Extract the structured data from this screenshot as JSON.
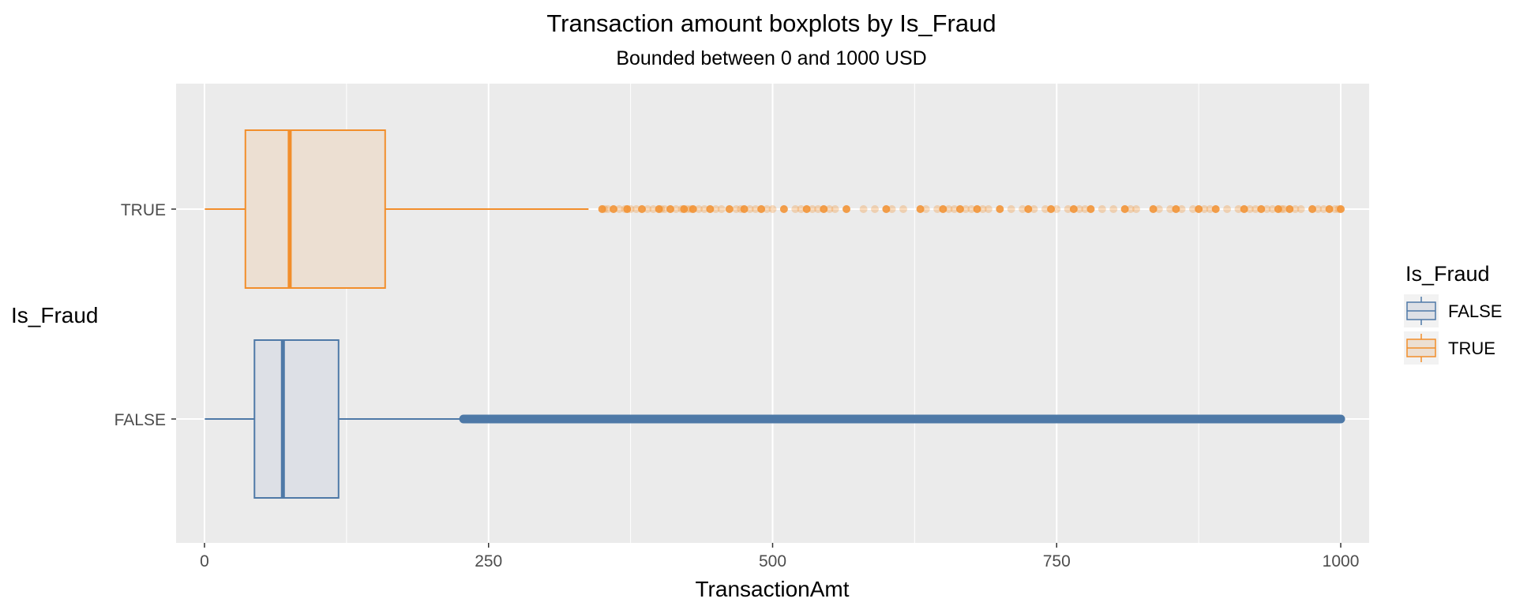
{
  "chart_data": {
    "type": "boxplot",
    "orientation": "horizontal",
    "title": "Transaction amount boxplots by Is_Fraud",
    "subtitle": "Bounded between 0 and 1000 USD",
    "xlabel": "TransactionAmt",
    "ylabel": "Is_Fraud",
    "xlim": [
      -25,
      1025
    ],
    "x_ticks": [
      0,
      250,
      500,
      750,
      1000
    ],
    "x_tick_labels": [
      "0",
      "250",
      "500",
      "750",
      "1000"
    ],
    "categories": [
      "FALSE",
      "TRUE"
    ],
    "grid": true,
    "legend": {
      "title": "Is_Fraud",
      "placement": "right",
      "entries": [
        "FALSE",
        "TRUE"
      ]
    },
    "series": [
      {
        "name": "FALSE",
        "color": "#4e79a7",
        "fill": "#dde0e6",
        "whisker_low": 0.3,
        "q1": 44,
        "median": 69,
        "q3": 118,
        "whisker_high": 228,
        "outlier_range": [
          228,
          1000
        ],
        "outlier_style": "dense"
      },
      {
        "name": "TRUE",
        "color": "#f28e2b",
        "fill": "#ecdfd2",
        "whisker_low": 0.3,
        "q1": 36,
        "median": 75,
        "q3": 159,
        "whisker_high": 338,
        "outliers": [
          350,
          352,
          355,
          360,
          365,
          370,
          372,
          375,
          380,
          385,
          390,
          395,
          400,
          402,
          405,
          410,
          415,
          420,
          422,
          425,
          428,
          430,
          435,
          440,
          445,
          450,
          455,
          462,
          468,
          472,
          475,
          480,
          485,
          490,
          495,
          500,
          510,
          520,
          525,
          530,
          535,
          540,
          545,
          550,
          555,
          565,
          580,
          590,
          600,
          605,
          615,
          630,
          635,
          645,
          650,
          655,
          660,
          665,
          670,
          675,
          680,
          685,
          690,
          700,
          710,
          720,
          725,
          730,
          740,
          745,
          750,
          760,
          765,
          770,
          775,
          780,
          790,
          800,
          810,
          815,
          820,
          835,
          840,
          850,
          855,
          860,
          870,
          875,
          880,
          885,
          890,
          900,
          910,
          915,
          920,
          925,
          930,
          935,
          940,
          945,
          948,
          950,
          955,
          960,
          965,
          975,
          980,
          985,
          990,
          995,
          998,
          1000
        ]
      }
    ]
  }
}
